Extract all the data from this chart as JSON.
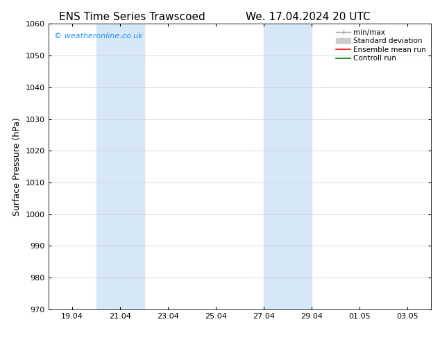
{
  "title_left": "ENS Time Series Trawscoed",
  "title_right": "We. 17.04.2024 20 UTC",
  "ylabel": "Surface Pressure (hPa)",
  "ylim": [
    970,
    1060
  ],
  "yticks": [
    970,
    980,
    990,
    1000,
    1010,
    1020,
    1030,
    1040,
    1050,
    1060
  ],
  "xlim": [
    0,
    16
  ],
  "xtick_positions": [
    1,
    3,
    5,
    7,
    9,
    11,
    13,
    15
  ],
  "xtick_labels": [
    "19.04",
    "21.04",
    "23.04",
    "25.04",
    "27.04",
    "29.04",
    "01.05",
    "03.05"
  ],
  "shaded_bands": [
    {
      "x_start": 2.0,
      "x_end": 4.0
    },
    {
      "x_start": 9.0,
      "x_end": 11.0
    }
  ],
  "shaded_color": "#d6e8f7",
  "background_color": "#ffffff",
  "watermark_text": "© weatheronline.co.uk",
  "watermark_color": "#1e90ff",
  "title_fontsize": 11,
  "axis_label_fontsize": 9,
  "tick_fontsize": 8,
  "legend_fontsize": 7.5,
  "watermark_fontsize": 8,
  "legend_gray_light": "#cccccc",
  "legend_gray_dark": "#999999",
  "legend_red": "#ff0000",
  "legend_green": "#008000"
}
